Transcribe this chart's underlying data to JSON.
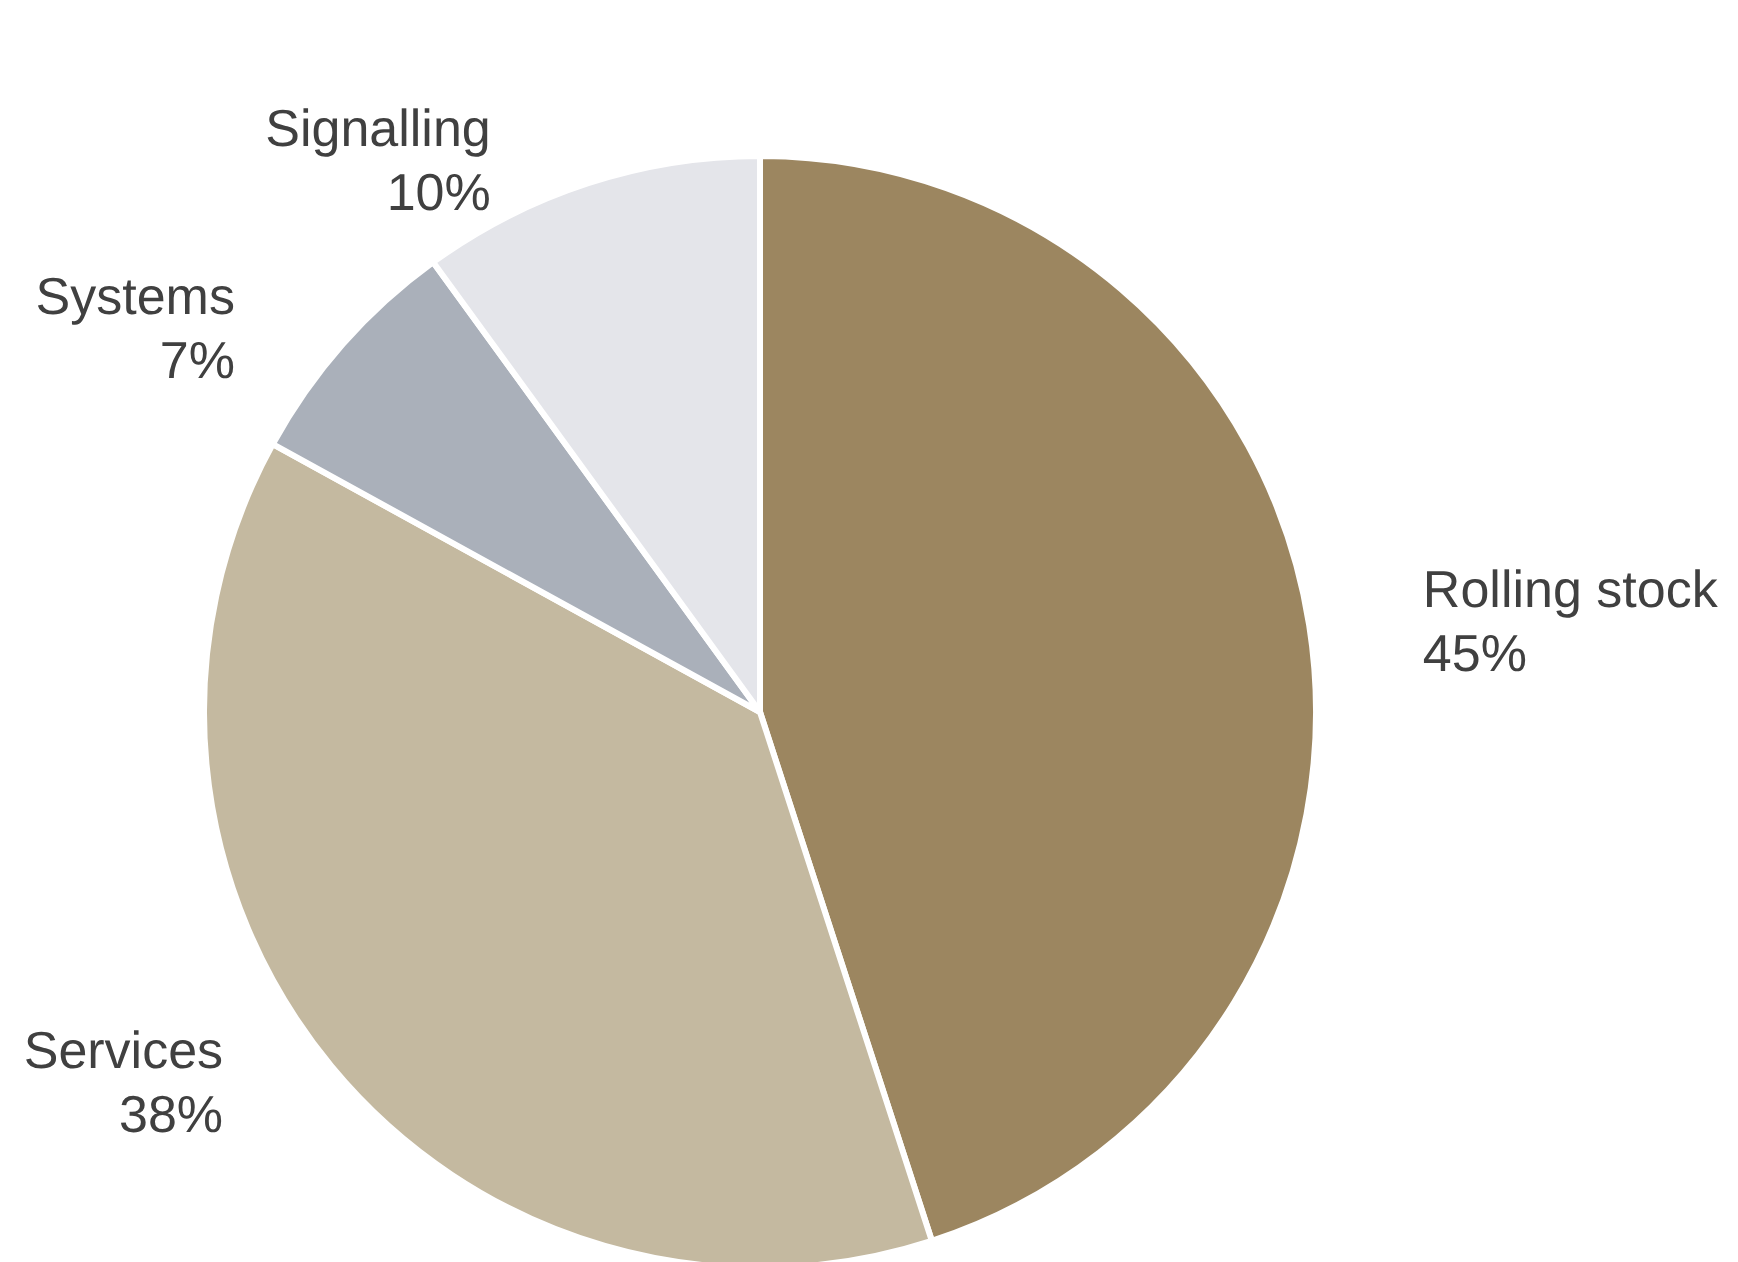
{
  "chart_data": {
    "type": "pie",
    "categories": [
      "Rolling stock",
      "Services",
      "Systems",
      "Signalling"
    ],
    "values": [
      45,
      38,
      7,
      10
    ],
    "value_labels": [
      "45%",
      "38%",
      "7%",
      "10%"
    ],
    "colors": [
      "#9c8660",
      "#c4b9a0",
      "#aab0ba",
      "#e4e5ea"
    ],
    "legend": false
  }
}
